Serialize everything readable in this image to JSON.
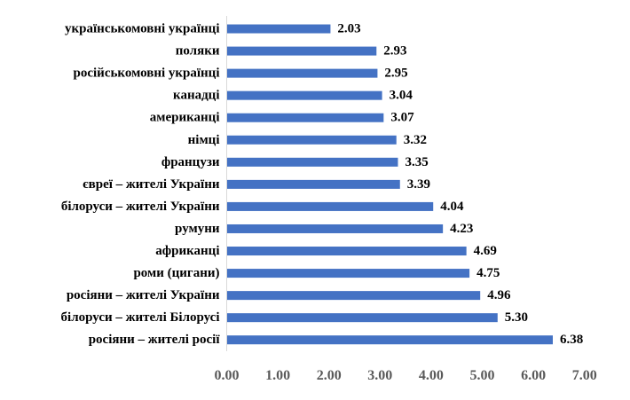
{
  "chart_data": {
    "type": "bar",
    "orientation": "horizontal",
    "categories": [
      "українськомовні українці",
      "поляки",
      "російськомовні українці",
      "канадці",
      "американці",
      "німці",
      "французи",
      "євреї – жителі України",
      "білоруси – жителі України",
      "румуни",
      "африканці",
      "роми (цигани)",
      "росіяни – жителі України",
      "білоруси – жителі Білорусі",
      "росіяни – жителі росії"
    ],
    "values": [
      2.03,
      2.93,
      2.95,
      3.04,
      3.07,
      3.32,
      3.35,
      3.39,
      4.04,
      4.23,
      4.69,
      4.75,
      4.96,
      5.3,
      6.38
    ],
    "value_labels": [
      "2.03",
      "2.93",
      "2.95",
      "3.04",
      "3.07",
      "3.32",
      "3.35",
      "3.39",
      "4.04",
      "4.23",
      "4.69",
      "4.75",
      "4.96",
      "5.30",
      "6.38"
    ],
    "x_ticks": [
      "0.00",
      "1.00",
      "2.00",
      "3.00",
      "4.00",
      "5.00",
      "6.00",
      "7.00"
    ],
    "xlim": [
      0,
      7
    ],
    "title": "",
    "xlabel": "",
    "ylabel": "",
    "grid": false,
    "legend": "none",
    "colors": {
      "bar": "#4472C4",
      "axis": "#D9D9D9",
      "tick_text": "#595959",
      "text": "#000000"
    }
  }
}
